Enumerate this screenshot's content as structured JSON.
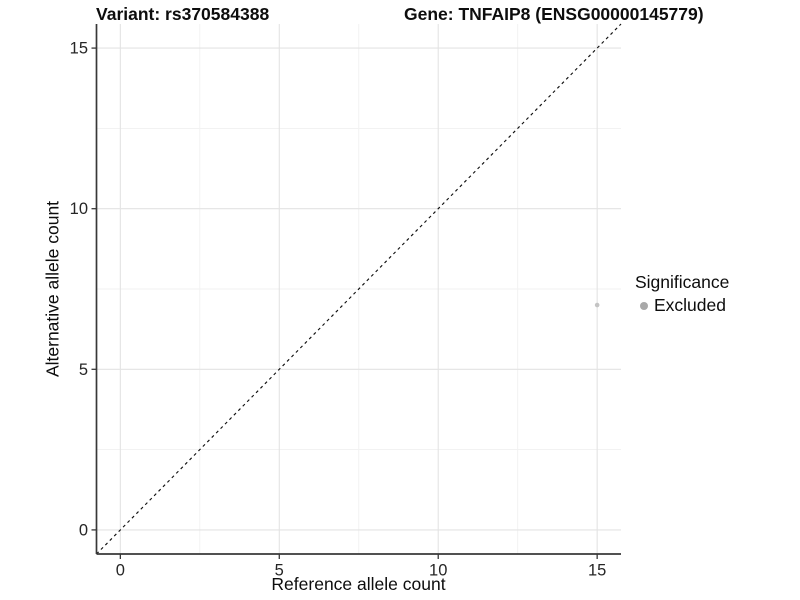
{
  "chart_data": {
    "type": "scatter",
    "titles": {
      "left": "Variant: rs370584388",
      "right": "Gene: TNFAIP8 (ENSG00000145779)"
    },
    "xlabel": "Reference allele count",
    "ylabel": "Alternative allele count",
    "xlim": [
      -0.75,
      15.75
    ],
    "ylim": [
      -0.75,
      15.75
    ],
    "x_ticks": [
      0,
      5,
      10,
      15
    ],
    "y_ticks": [
      0,
      5,
      10,
      15
    ],
    "x_minor_ticks": [
      2.5,
      7.5,
      12.5
    ],
    "y_minor_ticks": [
      2.5,
      7.5,
      12.5
    ],
    "grid": true,
    "reference_line": {
      "slope": 1,
      "intercept": 0,
      "style": "dashed",
      "color": "#111111"
    },
    "points": [
      {
        "x": 15,
        "y": 7,
        "group": "Excluded",
        "color": "#c4c4c4",
        "radius": 2.3
      }
    ],
    "legend": {
      "title": "Significance",
      "position": "right",
      "entries": [
        {
          "label": "Excluded",
          "color": "#a9a9a9"
        }
      ]
    },
    "colors": {
      "background": "#ffffff",
      "axis_line": "#383838",
      "tick_text": "#262626",
      "grid_major": "#e3e3e3",
      "grid_minor": "#f1f1f1"
    }
  }
}
